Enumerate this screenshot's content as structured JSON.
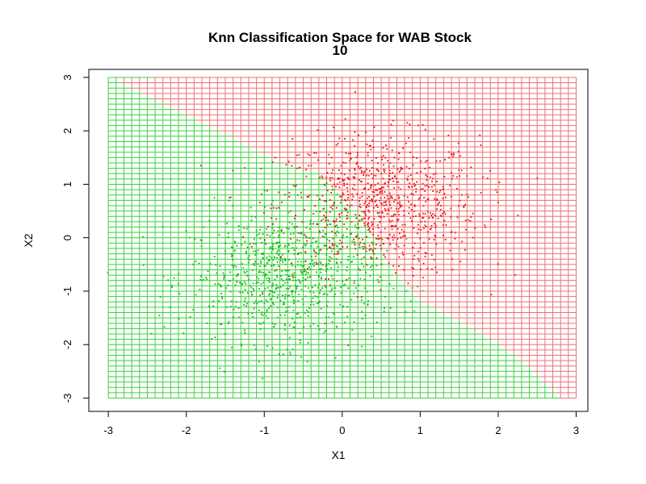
{
  "chart_data": {
    "type": "scatter",
    "title": "Knn Classification Space for WAB Stock",
    "subtitle": "10",
    "xlabel": "X1",
    "ylabel": "X2",
    "xlim": [
      -3.25,
      3.15
    ],
    "ylim": [
      -3.25,
      3.15
    ],
    "x_ticks": [
      "-3",
      "-2",
      "-1",
      "0",
      "1",
      "2",
      "3"
    ],
    "y_ticks": [
      "-3",
      "-2",
      "-1",
      "0",
      "1",
      "2",
      "3"
    ],
    "grid": {
      "range": [
        -3,
        3
      ],
      "step": 0.1,
      "boundary_points": [
        [
          -3.0,
          3.0
        ],
        [
          -2.4,
          3.0
        ],
        [
          -1.6,
          2.0
        ],
        [
          -0.8,
          1.4
        ],
        [
          -0.3,
          1.2
        ],
        [
          0.2,
          0.5
        ],
        [
          0.6,
          -0.5
        ],
        [
          1.0,
          -1.2
        ],
        [
          1.8,
          -1.8
        ],
        [
          2.3,
          -2.3
        ],
        [
          2.8,
          -3.0
        ]
      ],
      "lower_left_class": "green",
      "upper_right_class": "red"
    },
    "series": [
      {
        "color": "#ee1111",
        "center": [
          0.45,
          0.6
        ],
        "sd": 0.65,
        "count": 850
      },
      {
        "color": "#11bb11",
        "center": [
          -0.75,
          -0.75
        ],
        "sd": 0.6,
        "count": 750
      }
    ],
    "colors": {
      "red_region": "#f07070",
      "green_region": "#3ed03e",
      "red_points": "#ee1111",
      "green_points": "#11bb11"
    }
  }
}
